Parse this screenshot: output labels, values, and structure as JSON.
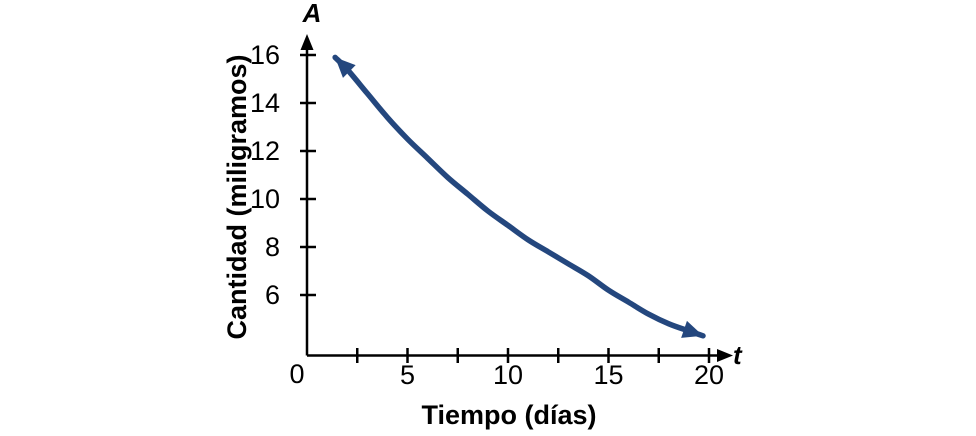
{
  "figure": {
    "background": "#ffffff",
    "y_axis_symbol": "A",
    "x_axis_symbol": "t",
    "y_axis_title": "Cantidad (miligramos)",
    "x_axis_title": "Tiempo (días)",
    "origin_label": "0"
  },
  "colors": {
    "axis": "#000000",
    "text": "#000000",
    "curve": "#24477e"
  },
  "chart_data": {
    "type": "line",
    "title": "",
    "xlabel": "Tiempo (días)",
    "ylabel": "Cantidad (miligramos)",
    "x_axis_variable": "t",
    "y_axis_variable": "A",
    "xlim": [
      0,
      20
    ],
    "ylim": [
      0,
      16
    ],
    "grid": false,
    "legend": false,
    "x_ticks_all": [
      2.5,
      5,
      7.5,
      10,
      12.5,
      15,
      17.5,
      20
    ],
    "x_tick_labels": [
      {
        "value": 5,
        "label": "5"
      },
      {
        "value": 10,
        "label": "10"
      },
      {
        "value": 15,
        "label": "15"
      },
      {
        "value": 20,
        "label": "20"
      }
    ],
    "y_tick_labels": [
      {
        "value": 6,
        "label": "6"
      },
      {
        "value": 8,
        "label": "8"
      },
      {
        "value": 10,
        "label": "10"
      },
      {
        "value": 12,
        "label": "12"
      },
      {
        "value": 14,
        "label": "14"
      },
      {
        "value": 16,
        "label": "16"
      }
    ],
    "series": [
      {
        "name": "decaimiento-exponencial",
        "description": "Curva de decaimiento exponencial con puntas de flecha en ambos extremos",
        "color": "#24477e",
        "arrow_start": true,
        "arrow_end": true,
        "points": [
          [
            1.4,
            15.9
          ],
          [
            2,
            15.4
          ],
          [
            3,
            14.4
          ],
          [
            4,
            13.4
          ],
          [
            5,
            12.5
          ],
          [
            6,
            11.7
          ],
          [
            7,
            10.9
          ],
          [
            8,
            10.2
          ],
          [
            9,
            9.5
          ],
          [
            10,
            8.9
          ],
          [
            11,
            8.3
          ],
          [
            12,
            7.8
          ],
          [
            13,
            7.3
          ],
          [
            14,
            6.8
          ],
          [
            15,
            6.2
          ],
          [
            16,
            5.7
          ],
          [
            17,
            5.2
          ],
          [
            18,
            4.8
          ],
          [
            19,
            4.5
          ],
          [
            19.7,
            4.3
          ]
        ]
      }
    ]
  }
}
